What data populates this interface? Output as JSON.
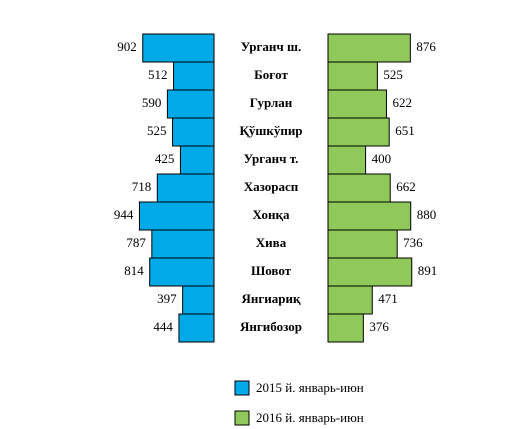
{
  "chart_data": {
    "type": "butterfly",
    "categories": [
      "Урганч ш.",
      "Боғот",
      "Гурлан",
      "Қўшкўпир",
      "Урганч т.",
      "Хазорасп",
      "Хонқа",
      "Хива",
      "Шовот",
      "Янгиариқ",
      "Янгибозор"
    ],
    "series": [
      {
        "name": "2015 й. январь-июн",
        "color": "#00a9e8",
        "values": [
          902,
          512,
          590,
          525,
          425,
          718,
          944,
          787,
          814,
          397,
          444
        ]
      },
      {
        "name": "2016 й. январь-июн",
        "color": "#8fc95a",
        "values": [
          876,
          525,
          622,
          651,
          400,
          662,
          880,
          736,
          891,
          471,
          376
        ]
      }
    ]
  }
}
